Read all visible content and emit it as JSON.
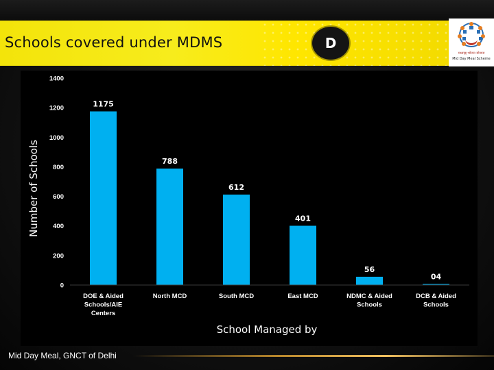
{
  "slide": {
    "title": "Schools covered under MDMS",
    "section_badge": "D",
    "footer": "Mid Day Meal, GNCT of Delhi",
    "logo": {
      "caption_line1": "मध्याह्न भोजन योजना",
      "caption_line2": "Mid Day Meal Scheme"
    }
  },
  "colors": {
    "bar": "#00b0f0",
    "banner": "#f7ec1c",
    "chart_background": "#000000",
    "text": "#ffffff"
  },
  "chart_data": {
    "type": "bar",
    "categories": [
      [
        "DOE  & Aided",
        "Schools/AIE",
        "Centers"
      ],
      [
        "North MCD"
      ],
      [
        "South  MCD"
      ],
      [
        "East MCD"
      ],
      [
        "NDMC & Aided",
        "Schools"
      ],
      [
        "DCB & Aided",
        "Schools"
      ]
    ],
    "values": [
      1175,
      788,
      612,
      401,
      56,
      4
    ],
    "data_labels": [
      "1175",
      "788",
      "612",
      "401",
      "56",
      "04"
    ],
    "xlabel": "School Managed by",
    "ylabel": "Number of Schools",
    "ylim": [
      0,
      1400
    ],
    "yticks": [
      0,
      200,
      400,
      600,
      800,
      1000,
      1200,
      1400
    ],
    "grid": false,
    "legend": "none"
  }
}
